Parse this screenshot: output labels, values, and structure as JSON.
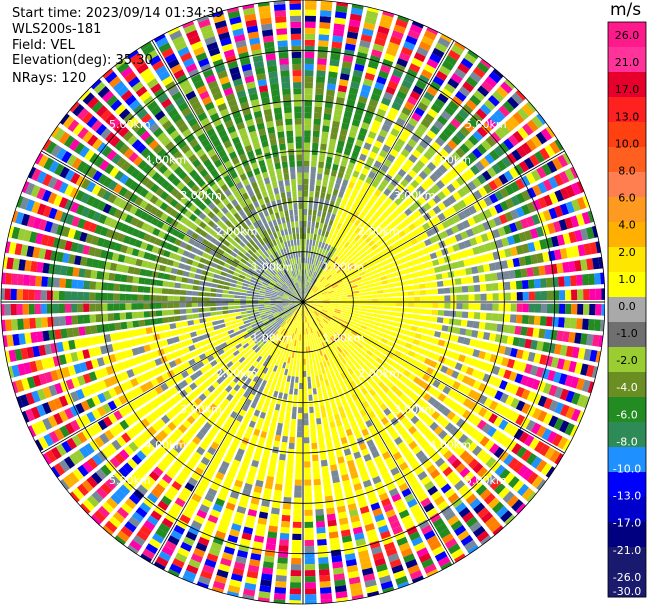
{
  "header": {
    "start_time": "Start time: 2023/09/14 01:34:39",
    "instrument": "WLS200s-181",
    "field": "Field: VEL",
    "elevation": "Elevation(deg): 35.30",
    "nrays": "NRays: 120"
  },
  "chart_data": {
    "type": "heatmap",
    "projection": "polar PPI",
    "field": "VEL",
    "n_rays": 120,
    "max_range_km": 6.0,
    "range_ring_labels": [
      "1.00km",
      "2.00km",
      "3.00km",
      "4.00km",
      "5.00km"
    ],
    "range_rings_km": [
      1,
      2,
      3,
      4,
      5
    ],
    "colorbar": {
      "unit": "m/s",
      "tick_labels": [
        "26.0",
        "21.0",
        "17.0",
        "13.0",
        "10.0",
        "8.0",
        "6.0",
        "4.0",
        "2.0",
        "1.0",
        "0.0",
        "-1.0",
        "-2.0",
        "-4.0",
        "-6.0",
        "-8.0",
        "-10.0",
        "-13.0",
        "-17.0",
        "-21.0",
        "-26.0",
        "-30.0"
      ],
      "colors": [
        "#ff1a8c",
        "#ff3399",
        "#e8002c",
        "#ff2020",
        "#ff4010",
        "#ff6020",
        "#ff7f50",
        "#ff9a20",
        "#ffb000",
        "#ffe600",
        "#ffff00",
        "#a9a9a9",
        "#6f6f6f",
        "#9acd32",
        "#6b8e23",
        "#228b22",
        "#2e8b57",
        "#1e90ff",
        "#0000ff",
        "#0000cd",
        "#000080",
        "#191970",
        "#1a1a6e"
      ]
    },
    "description_zones": {
      "inner_positive_sector_deg": [
        80,
        210
      ],
      "grid": true
    }
  }
}
